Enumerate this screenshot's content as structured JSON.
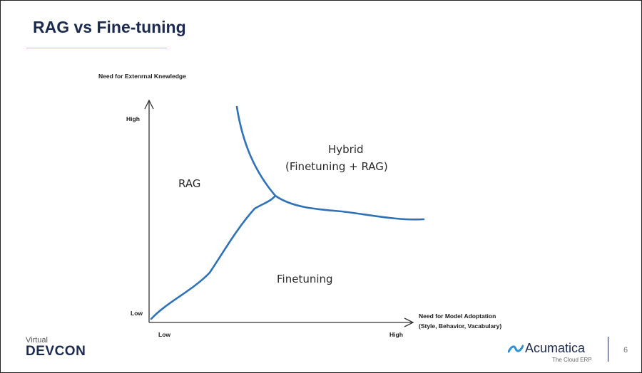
{
  "slide": {
    "title": "RAG vs Fine-tuning",
    "page_number": "6"
  },
  "diagram": {
    "y_axis_title": "Need for Extenrnal Knewledge",
    "y_high": "High",
    "y_low": "Low",
    "x_axis_title_line1": "Need for Model Adoptation",
    "x_axis_title_line2": "(Style, Behavior, Vacabulary)",
    "x_low": "Low",
    "x_high": "High",
    "regions": {
      "rag": "RAG",
      "hybrid_line1": "Hybrid",
      "hybrid_line2": "(Finetuning + RAG)",
      "finetuning": "Finetuning"
    },
    "curve_color": "#2f72b5"
  },
  "footer": {
    "event_prefix": "Virtual",
    "event_name": "DEVCON",
    "brand_name": "Acumatica",
    "brand_tagline": "The Cloud ERP"
  }
}
